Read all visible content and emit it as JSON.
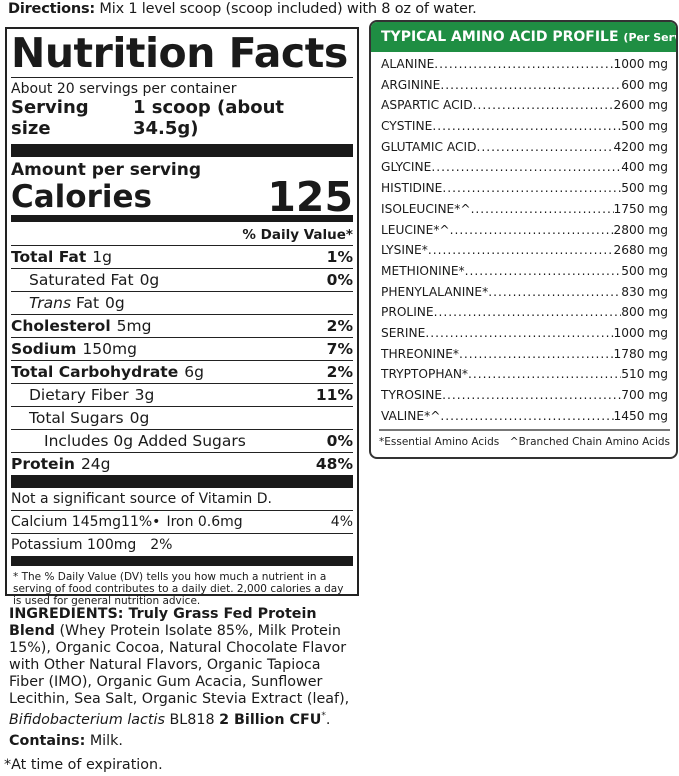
{
  "directions": {
    "label": "Directions:",
    "text": " Mix 1 level scoop (scoop included) with 8 oz of water."
  },
  "nutrition": {
    "title": "Nutrition Facts",
    "servings_per_container": "About 20 servings per container",
    "serving_size_label": "Serving size",
    "serving_size_value": "1 scoop (about 34.5g)",
    "amount_per_serving": "Amount per serving",
    "calories_label": "Calories",
    "calories_value": "125",
    "dv_header": "% Daily Value*",
    "rows": [
      {
        "name": "Total Fat",
        "amount": "1g",
        "dv": "1%",
        "bold": true,
        "indent": 0
      },
      {
        "name": "Saturated Fat",
        "amount": "0g",
        "dv": "0%",
        "bold": false,
        "indent": 1
      },
      {
        "name": "Trans",
        "suffix": " Fat",
        "amount": "0g",
        "dv": "",
        "bold": false,
        "indent": 1,
        "italic": true
      },
      {
        "name": "Cholesterol",
        "amount": "5mg",
        "dv": "2%",
        "bold": true,
        "indent": 0
      },
      {
        "name": "Sodium",
        "amount": "150mg",
        "dv": "7%",
        "bold": true,
        "indent": 0
      },
      {
        "name": "Total Carbohydrate",
        "amount": "6g",
        "dv": "2%",
        "bold": true,
        "indent": 0
      },
      {
        "name": "Dietary Fiber",
        "amount": "3g",
        "dv": "11%",
        "bold": false,
        "indent": 1
      },
      {
        "name": "Total Sugars",
        "amount": "0g",
        "dv": "",
        "bold": false,
        "indent": 1
      },
      {
        "name": "Includes 0g Added Sugars",
        "amount": "",
        "dv": "0%",
        "bold": false,
        "indent": 2
      },
      {
        "name": "Protein",
        "amount": "24g",
        "dv": "48%",
        "bold": true,
        "indent": 0
      }
    ],
    "vitamin_d": "Not a significant source of Vitamin D.",
    "calcium": "Calcium 145mg",
    "calcium_dv": "11%",
    "bullet": "•",
    "iron": "Iron 0.6mg",
    "iron_dv": "4%",
    "potassium": "Potassium 100mg",
    "potassium_dv": "2%",
    "footnote": "* The % Daily Value (DV) tells you how much a nutrient in a serving of food contributes to a daily diet. 2,000 calories a day is used for general nutrition advice."
  },
  "ingredients": {
    "label": "INGREDIENTS:",
    "blend": " Truly Grass Fed Protein Blend",
    "text": " (Whey Protein Isolate 85%, Milk Protein 15%), Organic Cocoa, Natural Chocolate Flavor with Other Natural Flavors, Organic Tapioca Fiber (IMO), Organic Gum Acacia, Sunflower Lecithin, Sea Salt, Organic Stevia Extract (leaf), ",
    "probiotic": "Bifidobacterium lactis",
    "strain": " BL818 ",
    "cfu": "2 Billion CFU",
    "cfu_mark": "*",
    "end": ".",
    "contains_label": "Contains:",
    "contains_value": " Milk.",
    "expiration_note": "*At time of expiration."
  },
  "amino": {
    "title": "TYPICAL AMINO ACID PROFILE",
    "subtitle": "(Per Serving)",
    "header_color": "#1f8e43",
    "rows": [
      {
        "name": "ALANINE",
        "value": "1000 mg"
      },
      {
        "name": "ARGININE",
        "value": "600 mg"
      },
      {
        "name": "ASPARTIC ACID",
        "value": "2600 mg"
      },
      {
        "name": "CYSTINE",
        "value": "500 mg"
      },
      {
        "name": "GLUTAMIC ACID",
        "value": "4200 mg"
      },
      {
        "name": "GLYCINE",
        "value": "400 mg"
      },
      {
        "name": "HISTIDINE",
        "value": "500 mg"
      },
      {
        "name": "ISOLEUCINE*^",
        "value": "1750 mg"
      },
      {
        "name": "LEUCINE*^",
        "value": "2800 mg"
      },
      {
        "name": "LYSINE*",
        "value": "2680 mg"
      },
      {
        "name": "METHIONINE*",
        "value": "500 mg"
      },
      {
        "name": "PHENYLALANINE*",
        "value": "830 mg"
      },
      {
        "name": "PROLINE",
        "value": "800 mg"
      },
      {
        "name": "SERINE",
        "value": "1000 mg"
      },
      {
        "name": "THREONINE*",
        "value": "1780 mg"
      },
      {
        "name": "TRYPTOPHAN*",
        "value": "510 mg"
      },
      {
        "name": "TYROSINE",
        "value": "700 mg"
      },
      {
        "name": "VALINE*^",
        "value": "1450 mg"
      }
    ],
    "legend_essential": "*Essential Amino Acids",
    "legend_bcaa": "^Branched Chain Amino Acids"
  }
}
